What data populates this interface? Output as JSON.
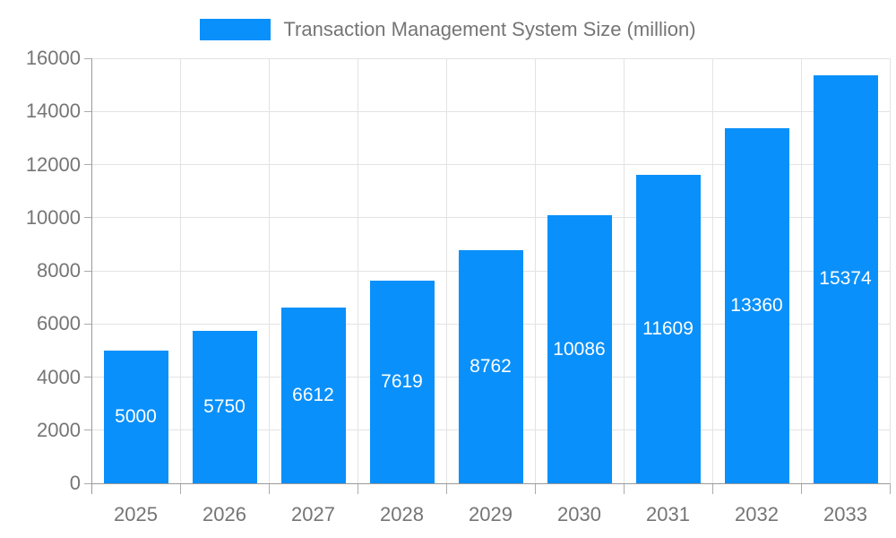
{
  "chart_data": {
    "type": "bar",
    "title": "Transaction Management System Size (million)",
    "legend_position": "top",
    "categories": [
      "2025",
      "2026",
      "2027",
      "2028",
      "2029",
      "2030",
      "2031",
      "2032",
      "2033"
    ],
    "series": [
      {
        "name": "Transaction Management System Size (million)",
        "values": [
          5000,
          5750,
          6612,
          7619,
          8762,
          10086,
          11609,
          13360,
          15374
        ]
      }
    ],
    "xlabel": "",
    "ylabel": "",
    "ylim": [
      0,
      16000
    ],
    "y_ticks": [
      0,
      2000,
      4000,
      6000,
      8000,
      10000,
      12000,
      14000,
      16000
    ],
    "grid": true,
    "bar_label_position": "inside-center",
    "colors": {
      "bar": "#0a90fa",
      "bar_label": "#ffffff",
      "grid": "#e3e3e3",
      "axis": "#9a9a9a",
      "tick": "#ababab",
      "tick_label": "#757575",
      "legend_text": "#757575",
      "background": "#ffffff"
    }
  }
}
